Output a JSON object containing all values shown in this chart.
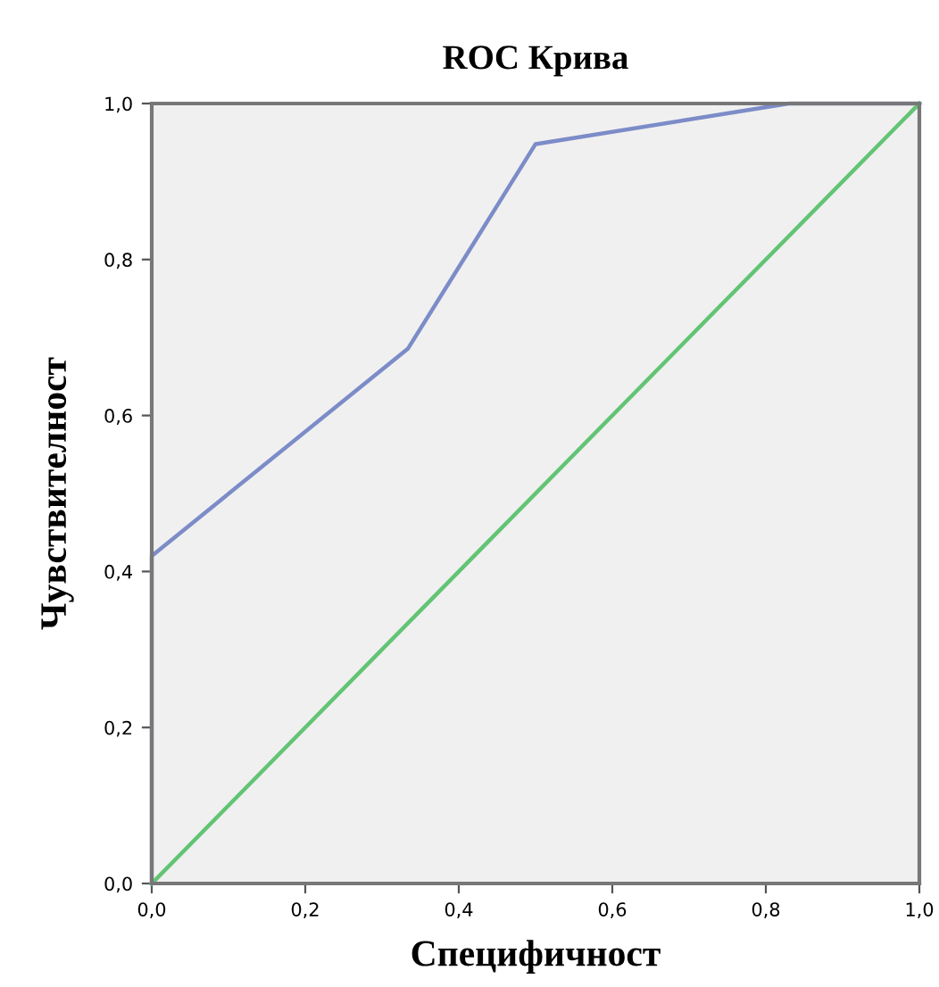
{
  "chart_data": {
    "type": "line",
    "title": "ROC Крива",
    "xlabel": "Специфичност",
    "ylabel": "Чувствителност",
    "series": [
      {
        "x": [
          0,
          0,
          0.334,
          0.5,
          0.83,
          1
        ],
        "values": [
          0,
          0.42,
          0.686,
          0.948,
          1,
          1
        ],
        "color": "#7c8cc8"
      },
      {
        "x": [
          0,
          1
        ],
        "values": [
          0,
          1
        ],
        "color": "#62c474"
      }
    ],
    "xlim": [
      0,
      1
    ],
    "ylim": [
      0,
      1
    ],
    "xticks": [
      {
        "value": 0,
        "label": "0,0"
      },
      {
        "value": 0.2,
        "label": "0,2"
      },
      {
        "value": 0.4,
        "label": "0,4"
      },
      {
        "value": 0.6,
        "label": "0,6"
      },
      {
        "value": 0.8,
        "label": "0,8"
      },
      {
        "value": 1,
        "label": "1,0"
      }
    ],
    "yticks": [
      {
        "value": 0,
        "label": "0,0"
      },
      {
        "value": 0.2,
        "label": "0,2"
      },
      {
        "value": 0.4,
        "label": "0,4"
      },
      {
        "value": 0.6,
        "label": "0,6"
      },
      {
        "value": 0.8,
        "label": "0,8"
      },
      {
        "value": 1,
        "label": "1,0"
      }
    ],
    "grid": false,
    "legend": false,
    "marker": "none",
    "line_style": "solid"
  }
}
